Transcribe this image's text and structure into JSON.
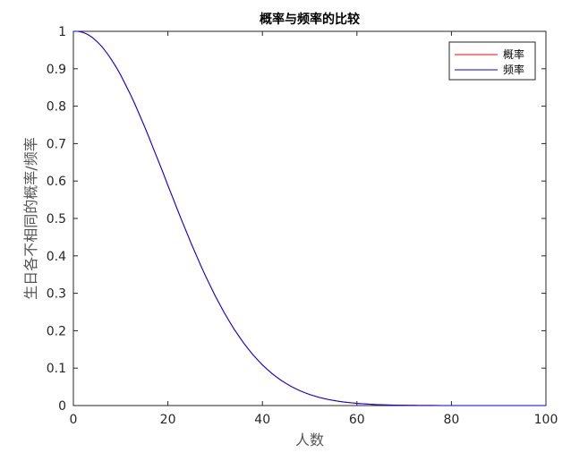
{
  "chart_data": {
    "type": "line",
    "title": "概率与频率的比较",
    "xlabel": "人数",
    "ylabel": "生日各不相同的概率/频率",
    "xlim": [
      0,
      100
    ],
    "ylim": [
      0,
      1
    ],
    "x_ticks": [
      "0",
      "20",
      "40",
      "60",
      "80",
      "100"
    ],
    "y_ticks": [
      "0",
      "0.1",
      "0.2",
      "0.3",
      "0.4",
      "0.5",
      "0.6",
      "0.7",
      "0.8",
      "0.9",
      "1"
    ],
    "grid": false,
    "legend_position": "top-right",
    "x": [
      1,
      2,
      3,
      4,
      5,
      6,
      7,
      8,
      9,
      10,
      11,
      12,
      13,
      14,
      15,
      16,
      17,
      18,
      19,
      20,
      21,
      22,
      23,
      24,
      25,
      26,
      27,
      28,
      29,
      30,
      31,
      32,
      33,
      34,
      35,
      36,
      37,
      38,
      39,
      40,
      41,
      42,
      43,
      44,
      45,
      46,
      47,
      48,
      49,
      50,
      51,
      52,
      53,
      54,
      55,
      56,
      57,
      58,
      59,
      60,
      61,
      62,
      63,
      64,
      65,
      66,
      67,
      68,
      69,
      70,
      71,
      72,
      73,
      74,
      75,
      76,
      77,
      78,
      79,
      80,
      81,
      82,
      83,
      84,
      85,
      86,
      87,
      88,
      89,
      90,
      91,
      92,
      93,
      94,
      95,
      96,
      97,
      98,
      99,
      100
    ],
    "series": [
      {
        "name": "概率",
        "color": "#ff0000",
        "values": [
          1,
          0.99726,
          0.9918,
          0.98364,
          0.97286,
          0.95954,
          0.94376,
          0.92566,
          0.90538,
          0.88305,
          0.85886,
          0.83298,
          0.80559,
          0.7769,
          0.7471,
          0.7164,
          0.68499,
          0.65309,
          0.62088,
          0.58856,
          0.55631,
          0.5243,
          0.4927,
          0.46166,
          0.4313,
          0.40176,
          0.37314,
          0.34554,
          0.31903,
          0.29368,
          0.26955,
          0.24665,
          0.22503,
          0.20468,
          0.18562,
          0.16782,
          0.15127,
          0.13593,
          0.12178,
          0.10877,
          0.09684,
          0.08597,
          0.07608,
          0.06713,
          0.05902,
          0.05175,
          0.04523,
          0.0394,
          0.03421,
          0.02963,
          0.02556,
          0.02199,
          0.01886,
          0.01612,
          0.01374,
          0.01168,
          0.0099,
          0.00835,
          0.00703,
          0.00588,
          0.0049,
          0.00407,
          0.00337,
          0.00278,
          0.00228,
          0.00187,
          0.00152,
          0.00124,
          0.001,
          0.0008,
          0.00064,
          0.00051,
          0.0004,
          0.00032,
          0.00025,
          0.00019,
          0.00015,
          0.00011,
          9e-05,
          7e-05,
          5e-05,
          4e-05,
          3e-05,
          2e-05,
          1e-05,
          1e-05,
          1e-05,
          0,
          0,
          0,
          0,
          0,
          0,
          0,
          0,
          0,
          0,
          0,
          0,
          0
        ]
      },
      {
        "name": "频率",
        "color": "#0000ff",
        "values": [
          1,
          0.9972,
          0.9921,
          0.9838,
          0.9725,
          0.9598,
          0.9435,
          0.9252,
          0.9057,
          0.8836,
          0.8579,
          0.8332,
          0.8062,
          0.7766,
          0.7474,
          0.7165,
          0.6842,
          0.6533,
          0.6215,
          0.5879,
          0.5567,
          0.5239,
          0.4924,
          0.4621,
          0.4309,
          0.4021,
          0.3728,
          0.3453,
          0.3192,
          0.2934,
          0.2698,
          0.2464,
          0.2253,
          0.2043,
          0.1862,
          0.1675,
          0.1516,
          0.1357,
          0.1221,
          0.1085,
          0.097,
          0.0858,
          0.0763,
          0.0669,
          0.0592,
          0.0515,
          0.0454,
          0.0393,
          0.0343,
          0.0295,
          0.0257,
          0.0219,
          0.0189,
          0.016,
          0.0138,
          0.0116,
          0.01,
          0.0083,
          0.0071,
          0.0058,
          0.005,
          0.0041,
          0.0034,
          0.0027,
          0.0023,
          0.0018,
          0.0015,
          0.0012,
          0.001,
          0.0008,
          0.0006,
          0.0005,
          0.0004,
          0.0003,
          0.0003,
          0.0002,
          0.0002,
          0.0001,
          0.0001,
          0.0001,
          0,
          0,
          0,
          0,
          0,
          0,
          0,
          0,
          0,
          0,
          0,
          0,
          0,
          0,
          0,
          0,
          0,
          0,
          0,
          0
        ]
      }
    ]
  }
}
